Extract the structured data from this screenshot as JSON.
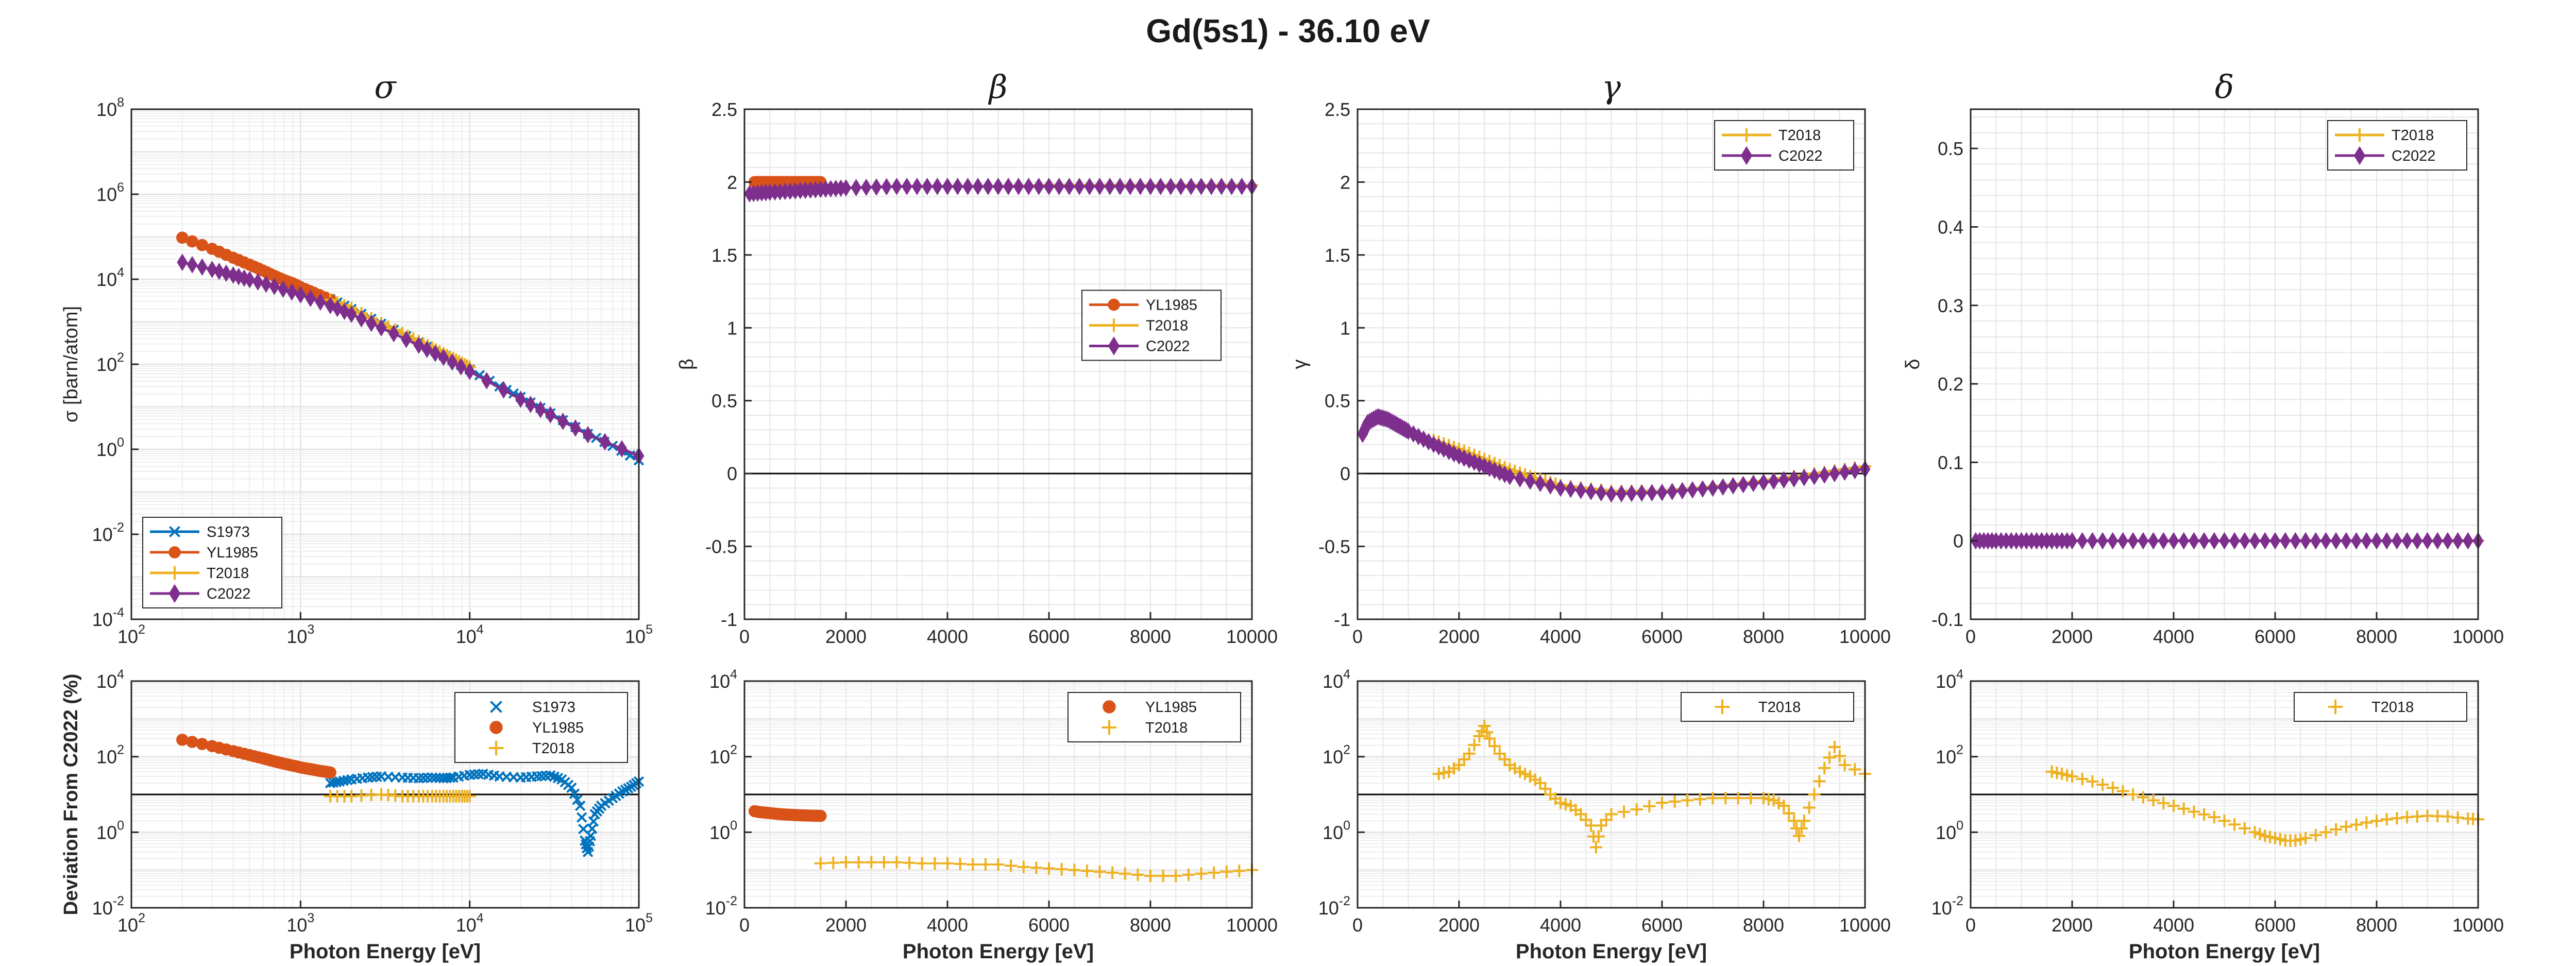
{
  "figure": {
    "title": "Gd(5s1) - 36.10 eV",
    "colors": {
      "S1973": "#0072BD",
      "YL1985": "#D95319",
      "T2018": "#EDB120",
      "C2022": "#7E2F8E"
    }
  },
  "chart_data": [
    {
      "id": "sigma",
      "type": "line",
      "title": "σ",
      "xlabel": "",
      "ylabel": "σ [barn/atom]",
      "xscale": "log",
      "yscale": "log",
      "xlim": [
        100,
        100000
      ],
      "ylim": [
        0.0001,
        100000000
      ],
      "xticks": [
        100,
        1000,
        10000,
        100000
      ],
      "yticks": [
        0.0001,
        0.01,
        1,
        100,
        10000,
        1000000,
        100000000
      ],
      "legend": "bottom-left",
      "grid": true,
      "series": [
        {
          "name": "S1973",
          "marker": "x",
          "x": [
            1500,
            2000,
            3000,
            5000,
            7000,
            10000,
            15000,
            20000,
            30000,
            50000,
            70000,
            100000
          ],
          "y": [
            3400,
            2000,
            900,
            330,
            160,
            75,
            30,
            17,
            7,
            2.3,
            1.2,
            0.55
          ]
        },
        {
          "name": "YL1985",
          "marker": "o",
          "x": [
            200,
            300,
            400,
            500,
            600,
            700,
            800,
            900,
            1000,
            1200,
            1500
          ],
          "y": [
            95000,
            52000,
            32000,
            22000,
            16000,
            12000,
            9500,
            8000,
            6500,
            4800,
            3300
          ]
        },
        {
          "name": "T2018",
          "marker": "+",
          "x": [
            1500,
            2000,
            3000,
            4000,
            5000,
            6000,
            7000,
            8000,
            9000,
            10000
          ],
          "y": [
            3300,
            2100,
            920,
            540,
            350,
            245,
            180,
            138,
            108,
            87
          ]
        },
        {
          "name": "C2022",
          "marker": "d",
          "x": [
            200,
            300,
            400,
            500,
            700,
            1000,
            1500,
            2000,
            3000,
            5000,
            7000,
            10000,
            20000,
            30000,
            50000,
            100000
          ],
          "y": [
            25000,
            17000,
            12500,
            9800,
            6800,
            4300,
            2400,
            1500,
            720,
            280,
            145,
            68,
            15,
            6.5,
            2.2,
            0.7
          ]
        }
      ]
    },
    {
      "id": "beta",
      "type": "line",
      "title": "β",
      "xlabel": "",
      "ylabel": "β",
      "xscale": "linear",
      "yscale": "linear",
      "xlim": [
        0,
        10000
      ],
      "ylim": [
        -1,
        2.5
      ],
      "xticks": [
        0,
        2000,
        4000,
        6000,
        8000,
        10000
      ],
      "yticks": [
        -1,
        -0.5,
        0,
        0.5,
        1,
        1.5,
        2,
        2.5
      ],
      "legend": "middle-right",
      "grid": true,
      "zero_line": 0,
      "series": [
        {
          "name": "YL1985",
          "marker": "o",
          "x": [
            200,
            300,
            400,
            500,
            600,
            700,
            800,
            900,
            1000,
            1100,
            1200,
            1300,
            1400,
            1500
          ],
          "y": [
            2,
            2,
            2,
            2,
            2,
            2,
            2,
            2,
            2,
            2,
            2,
            2,
            2,
            2
          ]
        },
        {
          "name": "T2018",
          "marker": "+",
          "x": [
            1500,
            2000,
            3000,
            4000,
            5000,
            6000,
            7000,
            8000,
            9000,
            10000
          ],
          "y": [
            1.96,
            1.96,
            1.97,
            1.97,
            1.97,
            1.98,
            1.98,
            1.98,
            1.98,
            1.98
          ]
        },
        {
          "name": "C2022",
          "marker": "d",
          "x": [
            100,
            500,
            1000,
            1500,
            2000,
            3000,
            4000,
            5000,
            6000,
            7000,
            8000,
            9000,
            10000
          ],
          "y": [
            1.92,
            1.93,
            1.94,
            1.95,
            1.96,
            1.97,
            1.97,
            1.97,
            1.97,
            1.97,
            1.97,
            1.97,
            1.97
          ]
        }
      ]
    },
    {
      "id": "gamma",
      "type": "line",
      "title": "γ",
      "xlabel": "",
      "ylabel": "γ",
      "xscale": "linear",
      "yscale": "linear",
      "xlim": [
        0,
        10000
      ],
      "ylim": [
        -1,
        2.5
      ],
      "xticks": [
        0,
        2000,
        4000,
        6000,
        8000,
        10000
      ],
      "yticks": [
        -1,
        -0.5,
        0,
        0.5,
        1,
        1.5,
        2,
        2.5
      ],
      "legend": "top-right",
      "grid": true,
      "zero_line": 0,
      "series": [
        {
          "name": "T2018",
          "marker": "+",
          "x": [
            1500,
            2000,
            2500,
            3000,
            3500,
            4000,
            5000,
            6000,
            7000,
            8000,
            9000,
            10000
          ],
          "y": [
            0.23,
            0.17,
            0.1,
            0.03,
            -0.03,
            -0.08,
            -0.12,
            -0.12,
            -0.09,
            -0.05,
            0,
            0.05
          ]
        },
        {
          "name": "C2022",
          "marker": "d",
          "x": [
            100,
            200,
            400,
            600,
            800,
            1000,
            1500,
            2000,
            2500,
            3000,
            4000,
            5000,
            6000,
            7000,
            8000,
            9000,
            10000
          ],
          "y": [
            0.27,
            0.35,
            0.39,
            0.37,
            0.33,
            0.29,
            0.2,
            0.12,
            0.05,
            -0.02,
            -0.1,
            -0.14,
            -0.13,
            -0.1,
            -0.06,
            -0.02,
            0.03
          ]
        }
      ]
    },
    {
      "id": "delta",
      "type": "line",
      "title": "δ",
      "xlabel": "",
      "ylabel": "δ",
      "xscale": "linear",
      "yscale": "linear",
      "xlim": [
        0,
        10000
      ],
      "ylim": [
        -0.1,
        0.55
      ],
      "xticks": [
        0,
        2000,
        4000,
        6000,
        8000,
        10000
      ],
      "yticks": [
        -0.1,
        0,
        0.1,
        0.2,
        0.3,
        0.4,
        0.5
      ],
      "legend": "top-right",
      "grid": true,
      "zero_line": 0,
      "series": [
        {
          "name": "T2018",
          "marker": "+",
          "x": [
            1500,
            2000,
            3000,
            4000,
            5000,
            6000,
            7000,
            8000,
            9000,
            10000
          ],
          "y": [
            0,
            0,
            0,
            0,
            0,
            0,
            0,
            0,
            0,
            0
          ]
        },
        {
          "name": "C2022",
          "marker": "d",
          "x": [
            100,
            500,
            1000,
            1500,
            2000,
            3000,
            4000,
            5000,
            6000,
            7000,
            8000,
            9000,
            10000
          ],
          "y": [
            0,
            0,
            0,
            0,
            0,
            0,
            0,
            0,
            0,
            0,
            0,
            0,
            0
          ]
        }
      ]
    },
    {
      "id": "dev-sigma",
      "type": "scatter",
      "title": "",
      "xlabel": "Photon Energy [eV]",
      "ylabel": "Deviation From C2022 (%)",
      "xscale": "log",
      "yscale": "log",
      "xlim": [
        100,
        100000
      ],
      "ylim": [
        0.01,
        10000
      ],
      "xticks": [
        100,
        1000,
        10000,
        100000
      ],
      "yticks": [
        0.01,
        1,
        100,
        10000
      ],
      "legend": "top-right",
      "grid": true,
      "ref_line": 10,
      "series": [
        {
          "name": "S1973",
          "marker": "x",
          "x": [
            1500,
            1700,
            2000,
            2500,
            3000,
            4000,
            5000,
            6000,
            7000,
            8000,
            10000,
            12000,
            15000,
            20000,
            25000,
            30000,
            35000,
            40000,
            45000,
            48000,
            50000,
            52000,
            55000,
            60000,
            70000,
            80000,
            90000,
            100000
          ],
          "y": [
            20,
            22,
            25,
            28,
            30,
            28,
            27,
            28,
            27,
            28,
            33,
            35,
            30,
            28,
            30,
            32,
            25,
            15,
            5,
            0.6,
            0.3,
            0.8,
            3,
            5,
            8,
            12,
            16,
            22
          ]
        },
        {
          "name": "YL1985",
          "marker": "o",
          "x": [
            200,
            300,
            400,
            500,
            600,
            700,
            800,
            900,
            1000,
            1100,
            1200,
            1300,
            1400,
            1500
          ],
          "y": [
            280,
            190,
            140,
            110,
            90,
            75,
            65,
            58,
            52,
            48,
            45,
            42,
            40,
            38
          ]
        },
        {
          "name": "T2018",
          "marker": "+",
          "x": [
            1500,
            2000,
            3000,
            4000,
            5000,
            6000,
            7000,
            8000,
            9000,
            10000
          ],
          "y": [
            9,
            9,
            10,
            9,
            9,
            9,
            9,
            9,
            9,
            9
          ]
        }
      ]
    },
    {
      "id": "dev-beta",
      "type": "scatter",
      "title": "",
      "xlabel": "Photon Energy [eV]",
      "ylabel": "",
      "xscale": "linear",
      "yscale": "log",
      "xlim": [
        0,
        10000
      ],
      "ylim": [
        0.01,
        10000
      ],
      "xticks": [
        0,
        2000,
        4000,
        6000,
        8000,
        10000
      ],
      "yticks": [
        0.01,
        1,
        100,
        10000
      ],
      "legend": "top-right",
      "grid": true,
      "ref_line": 10,
      "series": [
        {
          "name": "YL1985",
          "marker": "o",
          "x": [
            200,
            300,
            400,
            500,
            600,
            700,
            800,
            900,
            1000,
            1100,
            1200,
            1300,
            1400,
            1500
          ],
          "y": [
            3.6,
            3.4,
            3.3,
            3.2,
            3.1,
            3.0,
            2.95,
            2.9,
            2.85,
            2.8,
            2.78,
            2.75,
            2.72,
            2.7
          ]
        },
        {
          "name": "T2018",
          "marker": "+",
          "x": [
            1500,
            2000,
            2500,
            3000,
            3500,
            4000,
            4500,
            5000,
            5500,
            6000,
            6500,
            7000,
            7500,
            8000,
            8500,
            9000,
            9500,
            10000
          ],
          "y": [
            0.15,
            0.16,
            0.16,
            0.16,
            0.15,
            0.15,
            0.14,
            0.14,
            0.12,
            0.11,
            0.1,
            0.09,
            0.08,
            0.07,
            0.07,
            0.08,
            0.09,
            0.1
          ]
        }
      ]
    },
    {
      "id": "dev-gamma",
      "type": "scatter",
      "title": "",
      "xlabel": "Photon Energy [eV]",
      "ylabel": "",
      "xscale": "linear",
      "yscale": "log",
      "xlim": [
        0,
        10000
      ],
      "ylim": [
        0.01,
        10000
      ],
      "xticks": [
        0,
        2000,
        4000,
        6000,
        8000,
        10000
      ],
      "yticks": [
        0.01,
        1,
        100,
        10000
      ],
      "legend": "top-right",
      "grid": true,
      "ref_line": 10,
      "series": [
        {
          "name": "T2018",
          "marker": "+",
          "x": [
            1600,
            1800,
            2000,
            2200,
            2400,
            2500,
            2600,
            2800,
            3000,
            3200,
            3400,
            3600,
            3800,
            4000,
            4200,
            4400,
            4600,
            4700,
            4800,
            5000,
            5500,
            6000,
            6500,
            7000,
            7500,
            8000,
            8200,
            8400,
            8600,
            8700,
            8800,
            9000,
            9200,
            9400,
            9600,
            10000
          ],
          "y": [
            35,
            40,
            60,
            120,
            350,
            650,
            300,
            120,
            60,
            40,
            30,
            20,
            10,
            6,
            5,
            3,
            1.5,
            0.4,
            1.5,
            3,
            4,
            6,
            7,
            8,
            8,
            8,
            7,
            5,
            2,
            0.8,
            2,
            10,
            50,
            180,
            60,
            35
          ]
        }
      ]
    },
    {
      "id": "dev-delta",
      "type": "scatter",
      "title": "",
      "xlabel": "Photon Energy [eV]",
      "ylabel": "",
      "xscale": "linear",
      "yscale": "log",
      "xlim": [
        0,
        10000
      ],
      "ylim": [
        0.01,
        10000
      ],
      "xticks": [
        0,
        2000,
        4000,
        6000,
        8000,
        10000
      ],
      "yticks": [
        0.01,
        1,
        100,
        10000
      ],
      "legend": "top-right",
      "grid": true,
      "ref_line": 10,
      "series": [
        {
          "name": "T2018",
          "marker": "+",
          "x": [
            1600,
            1800,
            2000,
            2400,
            2800,
            3200,
            3600,
            4000,
            4400,
            4800,
            5200,
            5600,
            5800,
            6000,
            6200,
            6400,
            6600,
            7000,
            7400,
            7800,
            8200,
            8600,
            9000,
            9400,
            9800,
            10000
          ],
          "y": [
            40,
            35,
            30,
            22,
            15,
            10,
            7,
            5,
            3.5,
            2.5,
            1.6,
            1.0,
            0.8,
            0.7,
            0.6,
            0.6,
            0.7,
            1.0,
            1.4,
            1.8,
            2.2,
            2.5,
            2.7,
            2.6,
            2.3,
            2.2
          ]
        }
      ]
    }
  ]
}
